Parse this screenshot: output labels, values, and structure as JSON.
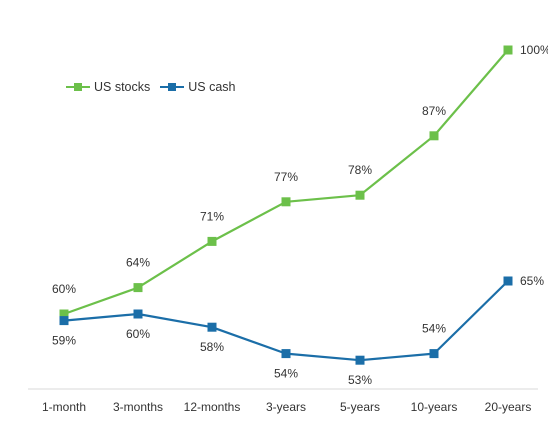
{
  "chart_data": {
    "type": "line",
    "categories": [
      "1-month",
      "3-months",
      "12-months",
      "3-years",
      "5-years",
      "10-years",
      "20-years"
    ],
    "series": [
      {
        "name": "US stocks",
        "color": "#6cc04a",
        "values": [
          60,
          64,
          71,
          77,
          78,
          87,
          100
        ],
        "labels": [
          "60%",
          "64%",
          "71%",
          "77%",
          "78%",
          "87%",
          "100%"
        ]
      },
      {
        "name": "US cash",
        "color": "#1b6ea8",
        "values": [
          59,
          60,
          58,
          54,
          53,
          54,
          65
        ],
        "labels": [
          "59%",
          "60%",
          "58%",
          "54%",
          "53%",
          "54%",
          "65%"
        ]
      }
    ],
    "title": "",
    "xlabel": "",
    "ylabel": "",
    "ylim": [
      50,
      100
    ],
    "grid": false,
    "legend": "top-left",
    "marker": "square"
  }
}
